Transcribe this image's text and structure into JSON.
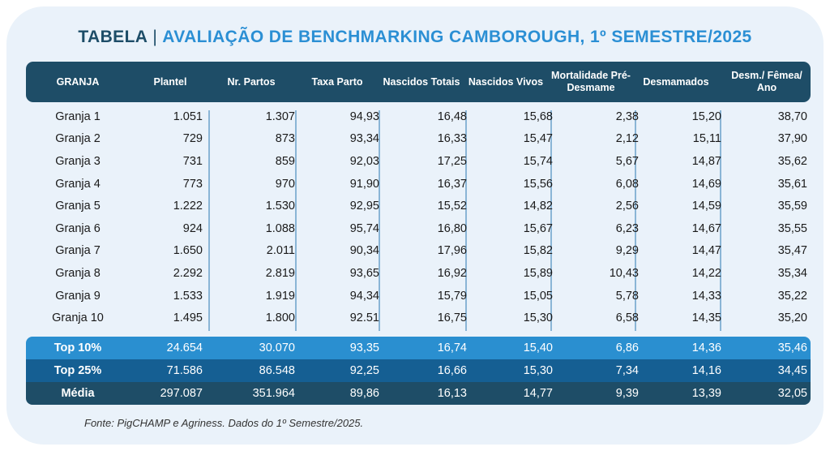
{
  "title_prefix": "TABELA",
  "title_separator": "|",
  "title_main": "AVALIAÇÃO DE BENCHMARKING CAMBOROUGH, 1º SEMESTRE/2025",
  "headers": [
    "GRANJA",
    "Plantel",
    "Nr. Partos",
    "Taxa Parto",
    "Nascidos Totais",
    "Nascidos Vivos",
    "Mortalidade Pré-Desmame",
    "Desmamados",
    "Desm./ Fêmea/ Ano"
  ],
  "rows": [
    [
      "Granja 1",
      "1.051",
      "1.307",
      "94,93",
      "16,48",
      "15,68",
      "2,38",
      "15,20",
      "38,70"
    ],
    [
      "Granja 2",
      "729",
      "873",
      "93,34",
      "16,33",
      "15,47",
      "2,12",
      "15,11",
      "37,90"
    ],
    [
      "Granja 3",
      "731",
      "859",
      "92,03",
      "17,25",
      "15,74",
      "5,67",
      "14,87",
      "35,62"
    ],
    [
      "Granja 4",
      "773",
      "970",
      "91,90",
      "16,37",
      "15,56",
      "6,08",
      "14,69",
      "35,61"
    ],
    [
      "Granja 5",
      "1.222",
      "1.530",
      "92,95",
      "15,52",
      "14,82",
      "2,56",
      "14,59",
      "35,59"
    ],
    [
      "Granja 6",
      "924",
      "1.088",
      "95,74",
      "16,80",
      "15,67",
      "6,23",
      "14,67",
      "35,55"
    ],
    [
      "Granja 7",
      "1.650",
      "2.011",
      "90,34",
      "17,96",
      "15,82",
      "9,29",
      "14,47",
      "35,47"
    ],
    [
      "Granja 8",
      "2.292",
      "2.819",
      "93,65",
      "16,92",
      "15,89",
      "10,43",
      "14,22",
      "35,34"
    ],
    [
      "Granja 9",
      "1.533",
      "1.919",
      "94,34",
      "15,79",
      "15,05",
      "5,78",
      "14,33",
      "35,22"
    ],
    [
      "Granja 10",
      "1.495",
      "1.800",
      "92.51",
      "16,75",
      "15,30",
      "6,58",
      "14,35",
      "35,20"
    ]
  ],
  "summary": [
    [
      "Top 10%",
      "24.654",
      "30.070",
      "93,35",
      "16,74",
      "15,40",
      "6,86",
      "14,36",
      "35,46"
    ],
    [
      "Top 25%",
      "71.586",
      "86.548",
      "92,25",
      "16,66",
      "15,30",
      "7,34",
      "14,16",
      "34,45"
    ],
    [
      "Média",
      "297.087",
      "351.964",
      "89,86",
      "16,13",
      "14,77",
      "9,39",
      "13,39",
      "32,05"
    ]
  ],
  "footer": "Fonte: PigCHAMP e Agriness. Dados do 1º Semestre/2025.",
  "colors": {
    "header_bg": "#1e4d67",
    "title_dark": "#1d4d68",
    "title_accent": "#2b8fd4",
    "top10_bg": "#2a8fd0",
    "top25_bg": "#155f93",
    "media_bg": "#1e4d67",
    "card_bg": "#eaf2fa"
  }
}
